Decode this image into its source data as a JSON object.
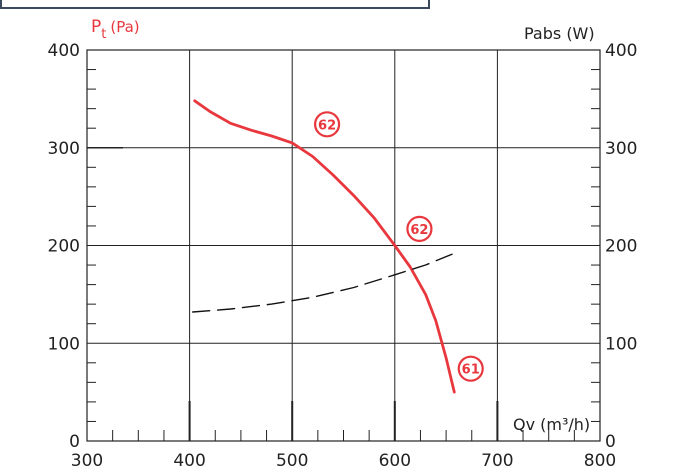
{
  "chart_data": {
    "type": "line",
    "x_axis": {
      "label": "Qv (m³/h)",
      "range": [
        300,
        800
      ],
      "ticks": [
        "300",
        "400",
        "500",
        "600",
        "700",
        "800"
      ]
    },
    "y_axis_left": {
      "label_main": "P",
      "label_sub": "t",
      "label_unit": "(Pa)",
      "range": [
        0,
        400
      ],
      "ticks": [
        "0",
        "100",
        "200",
        "300",
        "400"
      ]
    },
    "y_axis_right": {
      "label": "Pabs (W)",
      "range": [
        0,
        400
      ],
      "ticks": [
        "0",
        "100",
        "200",
        "300",
        "400"
      ]
    },
    "grid": true,
    "series": [
      {
        "axis": "left",
        "style": "solid",
        "color": "#e8383d",
        "points": [
          [
            405,
            348
          ],
          [
            420,
            337
          ],
          [
            440,
            325
          ],
          [
            460,
            318
          ],
          [
            480,
            312
          ],
          [
            500,
            305
          ],
          [
            520,
            291
          ],
          [
            540,
            272
          ],
          [
            560,
            251
          ],
          [
            580,
            228
          ],
          [
            600,
            200
          ],
          [
            615,
            178
          ],
          [
            630,
            150
          ],
          [
            640,
            123
          ],
          [
            650,
            85
          ],
          [
            658,
            50
          ]
        ]
      },
      {
        "axis": "right",
        "style": "dashed",
        "color": "#111111",
        "points": [
          [
            403,
            132
          ],
          [
            440,
            135
          ],
          [
            480,
            140
          ],
          [
            520,
            147
          ],
          [
            560,
            157
          ],
          [
            600,
            170
          ],
          [
            630,
            180
          ],
          [
            658,
            192
          ]
        ]
      }
    ],
    "annotations": [
      {
        "text": "62",
        "x": 534,
        "y": 324,
        "color": "#e8383d"
      },
      {
        "text": "62",
        "x": 624,
        "y": 217,
        "color": "#e8383d"
      },
      {
        "text": "61",
        "x": 674,
        "y": 74,
        "color": "#e8383d"
      }
    ]
  }
}
